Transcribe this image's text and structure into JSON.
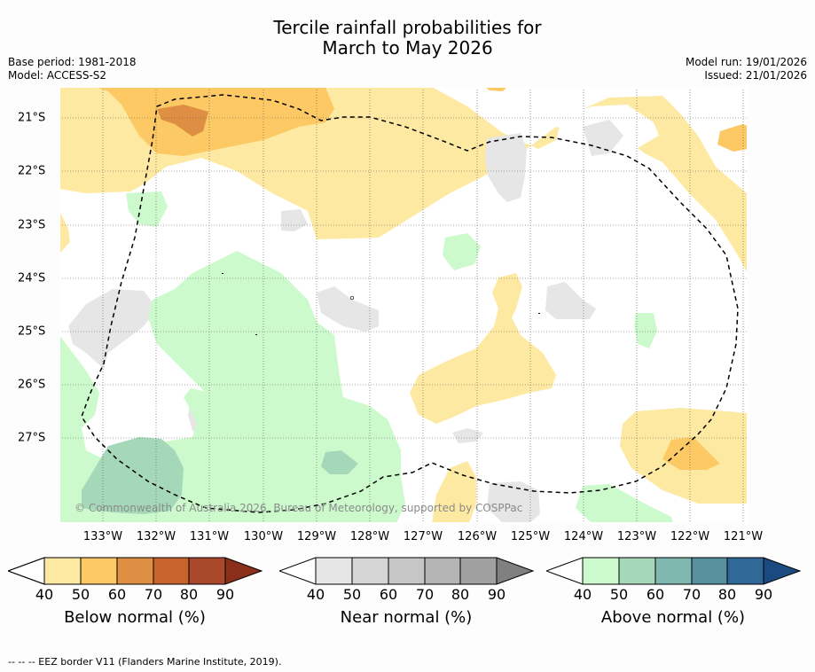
{
  "title": {
    "line1": "Tercile rainfall probabilities for",
    "line2": "March to May 2026"
  },
  "meta_left": {
    "base_period": "Base period: 1981-2018",
    "model": "Model: ACCESS-S2"
  },
  "meta_right": {
    "model_run": "Model run: 19/01/2026",
    "issued": "Issued: 21/01/2026"
  },
  "map": {
    "lon_range": [
      -133.8,
      -120.9
    ],
    "lat_range": [
      -28.6,
      -20.4
    ],
    "x_ticks": [
      "133°W",
      "132°W",
      "131°W",
      "130°W",
      "129°W",
      "128°W",
      "127°W",
      "126°W",
      "125°W",
      "124°W",
      "123°W",
      "122°W",
      "121°W"
    ],
    "y_ticks": [
      "21°S",
      "22°S",
      "23°S",
      "24°S",
      "25°S",
      "26°S",
      "27°S"
    ],
    "copyright": "© Commonwealth of Australia 2026, Bureau of Meteorology, supported by COSPPac"
  },
  "colorbars": [
    {
      "name": "below",
      "label": "Below normal (%)",
      "ticks": [
        "40",
        "50",
        "60",
        "70",
        "80",
        "90"
      ],
      "colors": [
        "#fee9a2",
        "#fdc965",
        "#df8f44",
        "#c8632e",
        "#a9482a",
        "#8a2f1a"
      ]
    },
    {
      "name": "near",
      "label": "Near normal (%)",
      "ticks": [
        "40",
        "50",
        "60",
        "70",
        "80",
        "90"
      ],
      "colors": [
        "#e6e6e6",
        "#d6d6d6",
        "#c6c6c6",
        "#b4b4b4",
        "#a0a0a0",
        "#808080"
      ]
    },
    {
      "name": "above",
      "label": "Above normal (%)",
      "ticks": [
        "40",
        "50",
        "60",
        "70",
        "80",
        "90"
      ],
      "colors": [
        "#ccfacc",
        "#a4d8b8",
        "#80b8b0",
        "#5890a0",
        "#306898",
        "#1a4a80"
      ]
    }
  ],
  "footer": "--  --  -- EEZ border V11 (Flanders Marine Institute, 2019)."
}
